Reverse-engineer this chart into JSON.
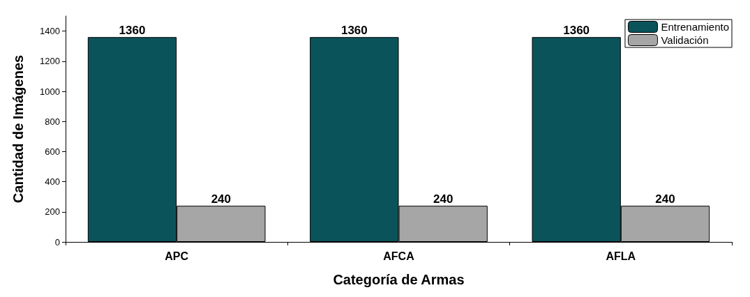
{
  "chart_data": {
    "type": "bar",
    "xlabel": "Categoría de Armas",
    "ylabel": "Cantidad de Imágenes",
    "categories": [
      "APC",
      "AFCA",
      "AFLA"
    ],
    "series": [
      {
        "name": "Entrenamiento",
        "color": "#0b535b",
        "values": [
          1360,
          1360,
          1360
        ]
      },
      {
        "name": "Validación",
        "color": "#a6a6a6",
        "values": [
          240,
          240,
          240
        ]
      }
    ],
    "ylim": [
      0,
      1500
    ],
    "yticks": [
      0,
      200,
      400,
      600,
      800,
      1000,
      1200,
      1400
    ],
    "data_labels": true,
    "legend": "top right",
    "grid": false
  }
}
